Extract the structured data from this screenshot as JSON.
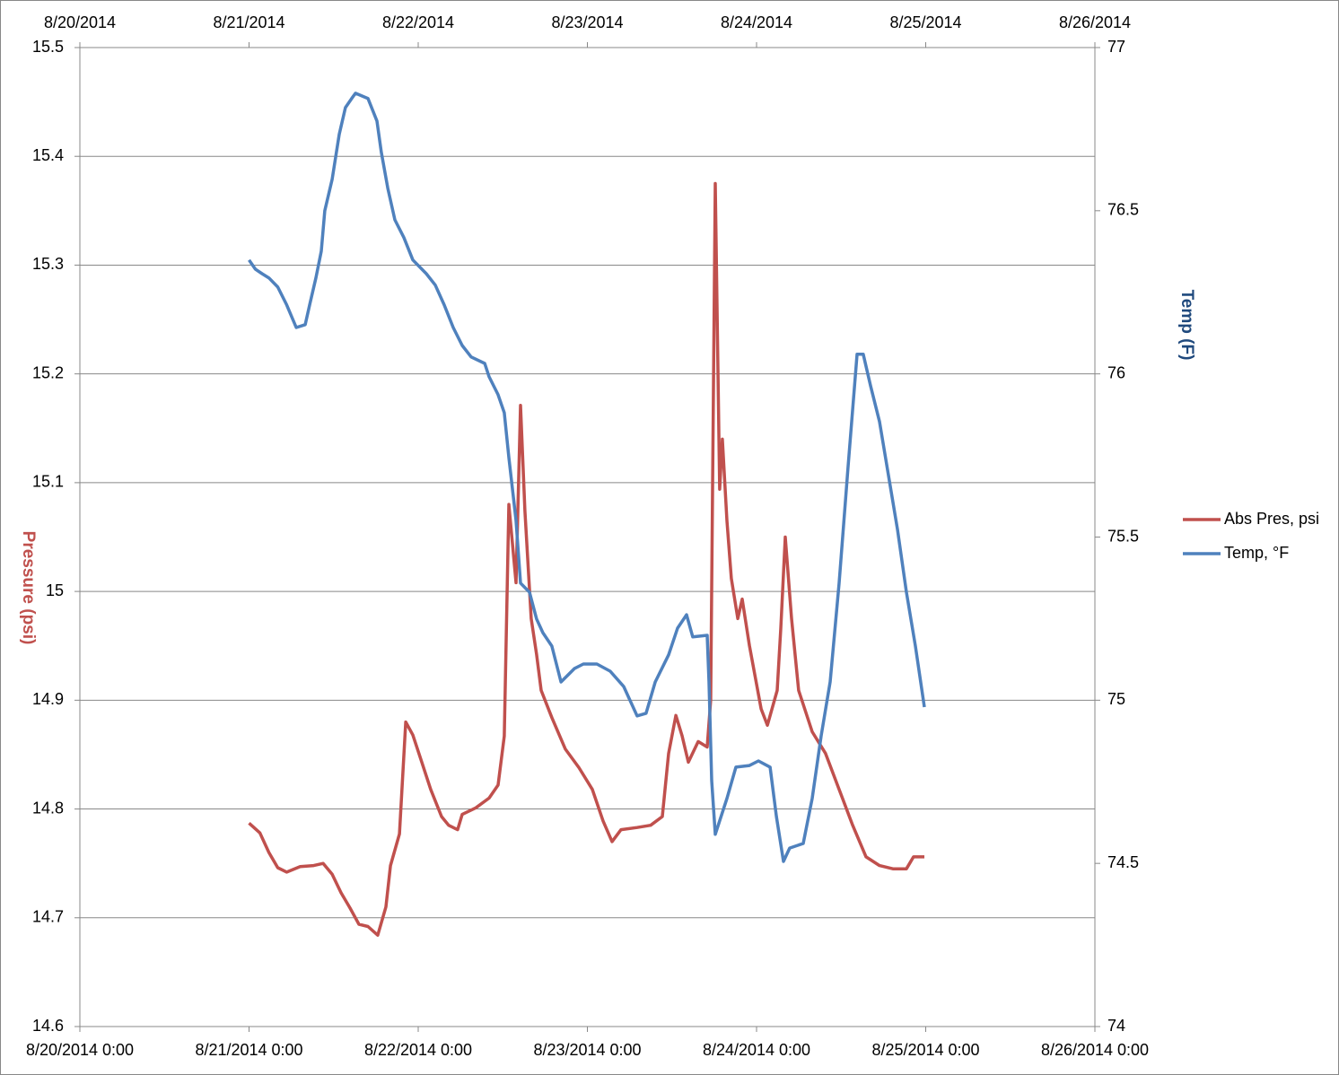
{
  "chart_data": {
    "type": "line",
    "xlim": [
      41871,
      41877
    ],
    "xticks": [
      {
        "value": 41871,
        "label": "8/20/2014 0:00"
      },
      {
        "value": 41872,
        "label": "8/21/2014 0:00"
      },
      {
        "value": 41873,
        "label": "8/22/2014 0:00"
      },
      {
        "value": 41874,
        "label": "8/23/2014 0:00"
      },
      {
        "value": 41875,
        "label": "8/24/2014 0:00"
      },
      {
        "value": 41876,
        "label": "8/25/2014 0:00"
      },
      {
        "value": 41877,
        "label": "8/26/2014 0:00"
      }
    ],
    "x2ticks": [
      {
        "value": 41871,
        "label": "8/20/2014"
      },
      {
        "value": 41872,
        "label": "8/21/2014"
      },
      {
        "value": 41873,
        "label": "8/22/2014"
      },
      {
        "value": 41874,
        "label": "8/23/2014"
      },
      {
        "value": 41875,
        "label": "8/24/2014"
      },
      {
        "value": 41876,
        "label": "8/25/2014"
      },
      {
        "value": 41877,
        "label": "8/26/2014"
      }
    ],
    "ylabel": "Pressure (psi)",
    "ylim": [
      14.6,
      15.5
    ],
    "yticks": [
      14.6,
      14.7,
      14.8,
      14.9,
      15,
      15.1,
      15.2,
      15.3,
      15.4,
      15.5
    ],
    "y2label": "Temp (F)",
    "y2lim": [
      74,
      77
    ],
    "y2ticks": [
      74,
      74.5,
      75,
      75.5,
      76,
      76.5,
      77
    ],
    "grid": true,
    "legend": "right",
    "series": [
      {
        "name": "Abs Pres, psi",
        "color": "#c0504d",
        "axis": "y",
        "x": [
          41872.0,
          41872.064,
          41872.117,
          41872.17,
          41872.223,
          41872.302,
          41872.382,
          41872.438,
          41872.491,
          41872.544,
          41872.597,
          41872.65,
          41872.703,
          41872.761,
          41872.809,
          41872.836,
          41872.889,
          41872.926,
          41872.968,
          41873.021,
          41873.074,
          41873.138,
          41873.18,
          41873.233,
          41873.26,
          41873.34,
          41873.419,
          41873.472,
          41873.509,
          41873.536,
          41873.578,
          41873.605,
          41873.631,
          41873.668,
          41873.7,
          41873.727,
          41873.79,
          41873.87,
          41873.95,
          41874.029,
          41874.093,
          41874.146,
          41874.199,
          41874.294,
          41874.374,
          41874.443,
          41874.48,
          41874.523,
          41874.56,
          41874.597,
          41874.655,
          41874.708,
          41874.729,
          41874.756,
          41874.782,
          41874.798,
          41874.825,
          41874.851,
          41874.889,
          41874.915,
          41874.958,
          41875.027,
          41875.064,
          41875.122,
          41875.143,
          41875.17,
          41875.207,
          41875.249,
          41875.329,
          41875.408,
          41875.488,
          41875.568,
          41875.647,
          41875.727,
          41875.806,
          41875.886,
          41875.928,
          41875.992
        ],
        "values": [
          14.787,
          14.778,
          14.76,
          14.746,
          14.742,
          14.747,
          14.748,
          14.75,
          14.74,
          14.723,
          14.709,
          14.694,
          14.692,
          14.684,
          14.71,
          14.748,
          14.777,
          14.88,
          14.868,
          14.843,
          14.818,
          14.793,
          14.785,
          14.781,
          14.795,
          14.801,
          14.81,
          14.822,
          14.867,
          15.08,
          15.008,
          15.171,
          15.074,
          14.975,
          14.942,
          14.909,
          14.884,
          14.855,
          14.838,
          14.818,
          14.789,
          14.77,
          14.781,
          14.783,
          14.785,
          14.793,
          14.851,
          14.886,
          14.867,
          14.843,
          14.862,
          14.857,
          14.9,
          15.375,
          15.094,
          15.14,
          15.065,
          15.012,
          14.975,
          14.993,
          14.95,
          14.892,
          14.877,
          14.909,
          14.966,
          15.05,
          14.975,
          14.909,
          14.871,
          14.851,
          14.818,
          14.785,
          14.756,
          14.748,
          14.745,
          14.745,
          14.756,
          14.756
        ]
      },
      {
        "name": "Temp, °F",
        "color": "#4f81bd",
        "axis": "y2",
        "x": [
          41872.0,
          41872.037,
          41872.077,
          41872.117,
          41872.17,
          41872.223,
          41872.279,
          41872.332,
          41872.358,
          41872.395,
          41872.427,
          41872.448,
          41872.491,
          41872.533,
          41872.57,
          41872.607,
          41872.629,
          41872.703,
          41872.756,
          41872.782,
          41872.82,
          41872.862,
          41872.915,
          41872.968,
          41873.048,
          41873.101,
          41873.154,
          41873.207,
          41873.26,
          41873.313,
          41873.393,
          41873.419,
          41873.472,
          41873.509,
          41873.536,
          41873.578,
          41873.605,
          41873.658,
          41873.7,
          41873.737,
          41873.79,
          41873.844,
          41873.923,
          41873.976,
          41874.056,
          41874.135,
          41874.215,
          41874.294,
          41874.347,
          41874.401,
          41874.48,
          41874.533,
          41874.586,
          41874.623,
          41874.708,
          41874.719,
          41874.735,
          41874.756,
          41874.825,
          41874.878,
          41874.958,
          41875.011,
          41875.08,
          41875.117,
          41875.159,
          41875.196,
          41875.276,
          41875.329,
          41875.382,
          41875.435,
          41875.488,
          41875.541,
          41875.594,
          41875.631,
          41875.674,
          41875.727,
          41875.78,
          41875.833,
          41875.886,
          41875.939,
          41875.992
        ],
        "values": [
          76.349,
          76.321,
          76.307,
          76.294,
          76.266,
          76.211,
          76.142,
          76.151,
          76.211,
          76.294,
          76.376,
          76.5,
          76.596,
          76.734,
          76.816,
          76.844,
          76.86,
          76.844,
          76.775,
          76.679,
          76.569,
          76.472,
          76.418,
          76.349,
          76.307,
          76.272,
          76.211,
          76.142,
          76.087,
          76.052,
          76.032,
          75.991,
          75.936,
          75.881,
          75.744,
          75.551,
          75.359,
          75.331,
          75.249,
          75.207,
          75.166,
          75.056,
          75.097,
          75.111,
          75.111,
          75.089,
          75.042,
          74.952,
          74.96,
          75.056,
          75.139,
          75.221,
          75.262,
          75.194,
          75.199,
          75.056,
          74.754,
          74.589,
          74.699,
          74.795,
          74.8,
          74.814,
          74.795,
          74.644,
          74.506,
          74.547,
          74.561,
          74.699,
          74.891,
          75.056,
          75.359,
          75.716,
          76.06,
          76.06,
          75.964,
          75.854,
          75.689,
          75.524,
          75.331,
          75.166,
          74.979
        ]
      }
    ]
  }
}
